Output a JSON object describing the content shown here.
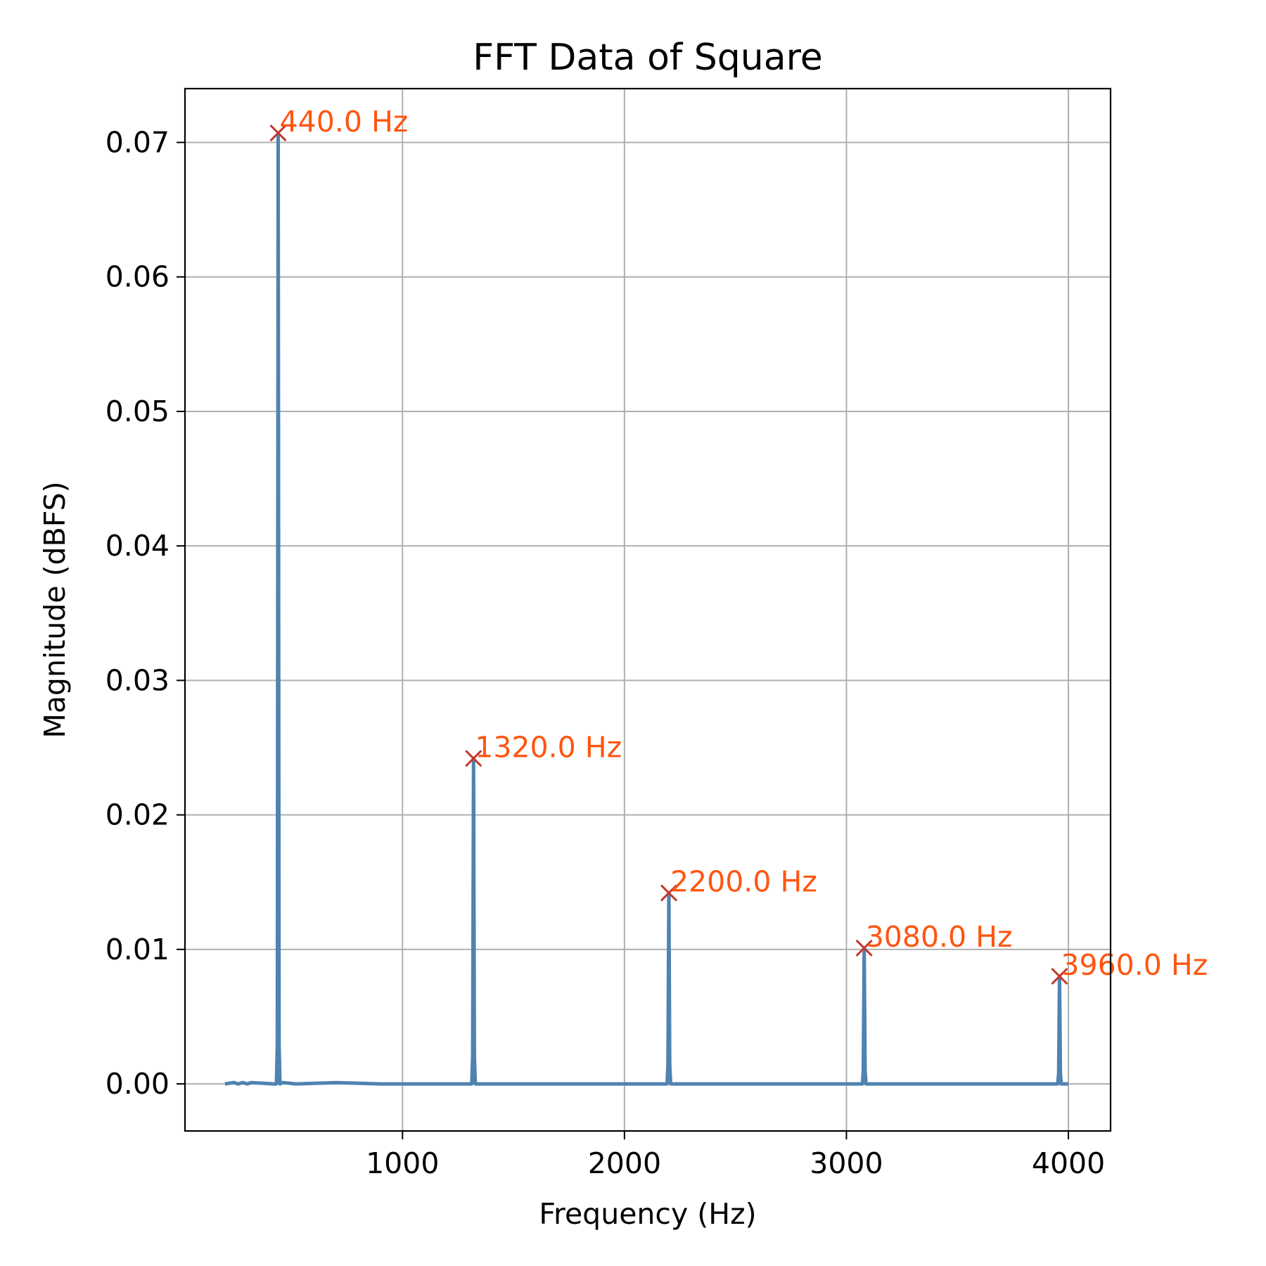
{
  "chart_data": {
    "type": "line",
    "title": "FFT Data of Square",
    "xlabel": "Frequency (Hz)",
    "ylabel": "Magnitude (dBFS)",
    "xlim": [
      20,
      4190
    ],
    "ylim": [
      -0.0035,
      0.074
    ],
    "xticks": [
      1000,
      2000,
      3000,
      4000
    ],
    "xtick_labels": [
      "1000",
      "2000",
      "3000",
      "4000"
    ],
    "yticks": [
      0.0,
      0.01,
      0.02,
      0.03,
      0.04,
      0.05,
      0.06,
      0.07
    ],
    "ytick_labels": [
      "0.00",
      "0.01",
      "0.02",
      "0.03",
      "0.04",
      "0.05",
      "0.06",
      "0.07"
    ],
    "grid": true,
    "legend": "none",
    "series": [
      {
        "color": "#4f83b0",
        "x": [
          200,
          240,
          260,
          280,
          300,
          320,
          420,
          432,
          436,
          440,
          444,
          448,
          460,
          520,
          700,
          900,
          1100,
          1300,
          1312,
          1316,
          1320,
          1324,
          1328,
          1340,
          1600,
          1900,
          2180,
          2192,
          2196,
          2200,
          2204,
          2208,
          2220,
          2500,
          2800,
          3060,
          3072,
          3076,
          3080,
          3084,
          3088,
          3100,
          3400,
          3700,
          3940,
          3952,
          3956,
          3960,
          3964,
          3968,
          3980,
          4000
        ],
        "y": [
          0.0,
          0.0001,
          0.0,
          0.0001,
          0.0,
          0.0001,
          0.0,
          0.0,
          0.003,
          0.0707,
          0.003,
          0.0,
          0.0001,
          0.0,
          0.0001,
          0.0,
          0.0,
          0.0,
          0.0,
          0.002,
          0.0242,
          0.002,
          0.0,
          0.0,
          0.0,
          0.0,
          0.0,
          0.0,
          0.0015,
          0.0142,
          0.0015,
          0.0,
          0.0,
          0.0,
          0.0,
          0.0,
          0.0,
          0.001,
          0.0101,
          0.001,
          0.0,
          0.0,
          0.0,
          0.0,
          0.0,
          0.0,
          0.0008,
          0.008,
          0.0008,
          0.0,
          0.0,
          0.0
        ]
      }
    ],
    "peaks": [
      {
        "x": 440.0,
        "y": 0.0707,
        "label": "440.0 Hz"
      },
      {
        "x": 1320.0,
        "y": 0.0242,
        "label": "1320.0 Hz"
      },
      {
        "x": 2200.0,
        "y": 0.0142,
        "label": "2200.0 Hz"
      },
      {
        "x": 3080.0,
        "y": 0.0101,
        "label": "3080.0 Hz"
      },
      {
        "x": 3960.0,
        "y": 0.008,
        "label": "3960.0 Hz"
      }
    ],
    "colors": {
      "line": "#4f83b0",
      "peak_marker": "#c0392b",
      "peak_label": "#ff5511",
      "grid": "#b0b0b0"
    }
  }
}
